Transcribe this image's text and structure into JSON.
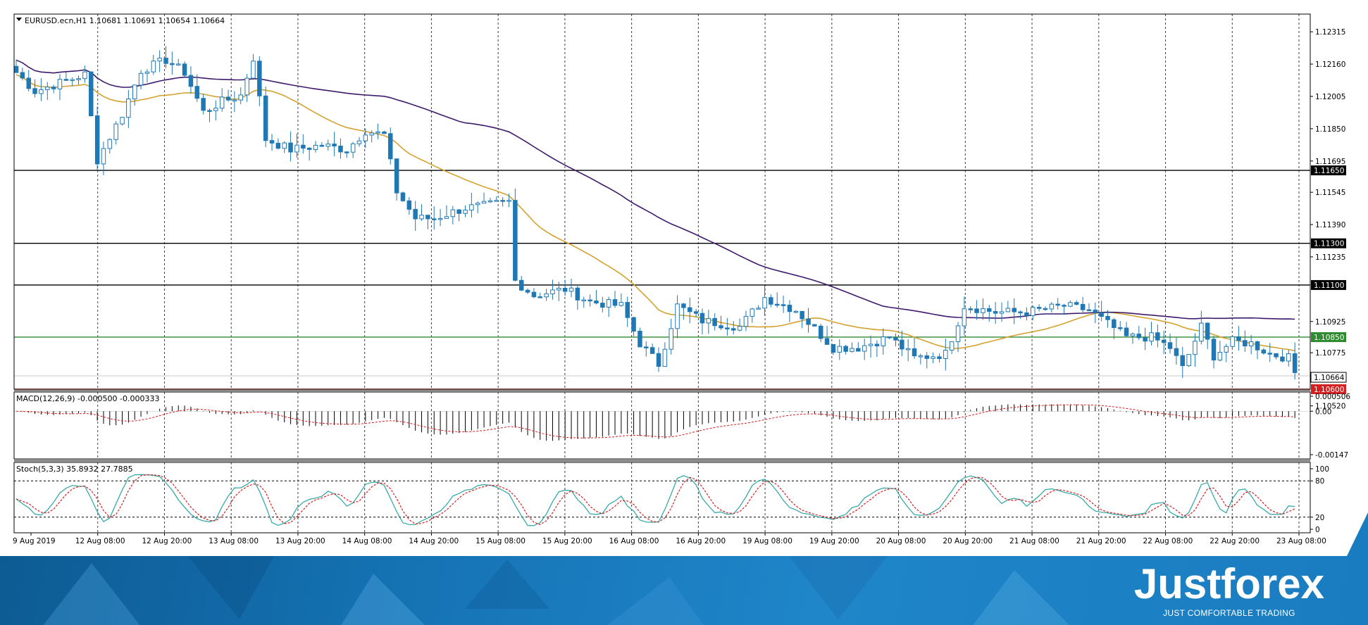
{
  "chart_data": [
    {
      "type": "candlestick",
      "title": "EURUSD.ecn,H1  1.10681 1.10691 1.10654 1.10664",
      "ylim": [
        1.106,
        1.124
      ],
      "y_ticks": [
        "1.12315",
        "1.12160",
        "1.12005",
        "1.11850",
        "1.11695",
        "1.11545",
        "1.11390",
        "1.11235",
        "1.10925",
        "1.10775",
        "1.10520"
      ],
      "x_ticks": [
        "9 Aug 2019",
        "12 Aug 08:00",
        "12 Aug 20:00",
        "13 Aug 08:00",
        "13 Aug 20:00",
        "14 Aug 08:00",
        "14 Aug 20:00",
        "15 Aug 08:00",
        "15 Aug 20:00",
        "16 Aug 08:00",
        "16 Aug 20:00",
        "19 Aug 08:00",
        "19 Aug 20:00",
        "20 Aug 08:00",
        "20 Aug 20:00",
        "21 Aug 08:00",
        "21 Aug 20:00",
        "22 Aug 08:00",
        "22 Aug 20:00",
        "23 Aug 08:00"
      ],
      "close_anchors": [
        [
          0,
          1.1212
        ],
        [
          3,
          1.1203
        ],
        [
          7,
          1.1207
        ],
        [
          11,
          1.1211
        ],
        [
          13,
          1.117
        ],
        [
          17,
          1.1192
        ],
        [
          20,
          1.1213
        ],
        [
          24,
          1.1218
        ],
        [
          27,
          1.1212
        ],
        [
          30,
          1.1193
        ],
        [
          33,
          1.1198
        ],
        [
          36,
          1.1201
        ],
        [
          38,
          1.1219
        ],
        [
          40,
          1.118
        ],
        [
          44,
          1.1175
        ],
        [
          49,
          1.1177
        ],
        [
          53,
          1.1175
        ],
        [
          56,
          1.1184
        ],
        [
          59,
          1.1182
        ],
        [
          61,
          1.1155
        ],
        [
          64,
          1.1142
        ],
        [
          67,
          1.1142
        ],
        [
          72,
          1.1147
        ],
        [
          75,
          1.1148
        ],
        [
          79,
          1.115
        ],
        [
          80,
          1.1112
        ],
        [
          83,
          1.1105
        ],
        [
          88,
          1.1108
        ],
        [
          92,
          1.1102
        ],
        [
          97,
          1.11
        ],
        [
          100,
          1.1082
        ],
        [
          103,
          1.1072
        ],
        [
          106,
          1.11
        ],
        [
          110,
          1.1093
        ],
        [
          116,
          1.109
        ],
        [
          120,
          1.1104
        ],
        [
          125,
          1.1098
        ],
        [
          131,
          1.108
        ],
        [
          135,
          1.108
        ],
        [
          140,
          1.1085
        ],
        [
          144,
          1.1075
        ],
        [
          149,
          1.1077
        ],
        [
          152,
          1.11
        ],
        [
          157,
          1.1097
        ],
        [
          162,
          1.1097
        ],
        [
          168,
          1.11
        ],
        [
          172,
          1.1098
        ],
        [
          178,
          1.1085
        ],
        [
          182,
          1.1085
        ],
        [
          185,
          1.108
        ],
        [
          187,
          1.107
        ],
        [
          190,
          1.109
        ],
        [
          192,
          1.1076
        ],
        [
          195,
          1.1083
        ],
        [
          198,
          1.1082
        ],
        [
          201,
          1.1077
        ],
        [
          204,
          1.1075
        ],
        [
          205,
          1.1068
        ]
      ],
      "horizontal_levels": [
        {
          "value": 1.1165,
          "label": "1.11650",
          "color": "#000000"
        },
        {
          "value": 1.113,
          "label": "1.11300",
          "color": "#000000"
        },
        {
          "value": 1.111,
          "label": "1.11100",
          "color": "#000000"
        },
        {
          "value": 1.1085,
          "label": "1.10850",
          "color": "#2e8b2e"
        },
        {
          "value": 1.106,
          "label": "1.10600",
          "color": "#d42020"
        }
      ],
      "current_price": "1.10664",
      "moving_averages": [
        {
          "color": "#d4a230",
          "period": 50
        },
        {
          "color": "#3d1a6b",
          "period": 200
        }
      ],
      "vertical_grid": "dashed",
      "colors": {
        "bull": "#ffffff",
        "bear": "#1f78b4",
        "outline": "#1f78b4"
      }
    },
    {
      "type": "bar",
      "title": "MACD(12,26,9) -0.000500 -0.000333",
      "y_ticks": [
        "0.000506",
        "0.00",
        "-0.00147"
      ],
      "ylim": [
        -0.00147,
        0.000506
      ],
      "signal_color": "#d42020"
    },
    {
      "type": "line",
      "title": "Stoch(5,3,3) 35.8932 27.7885",
      "y_ticks": [
        "100",
        "80",
        "20",
        "0"
      ],
      "ylim": [
        0,
        100
      ],
      "levels": [
        80,
        20
      ],
      "series": [
        {
          "color": "#2aa4a4"
        },
        {
          "color": "#d42020"
        }
      ]
    }
  ],
  "brand": {
    "name": "Justforex",
    "tagline": "JUST COMFORTABLE TRADING"
  }
}
